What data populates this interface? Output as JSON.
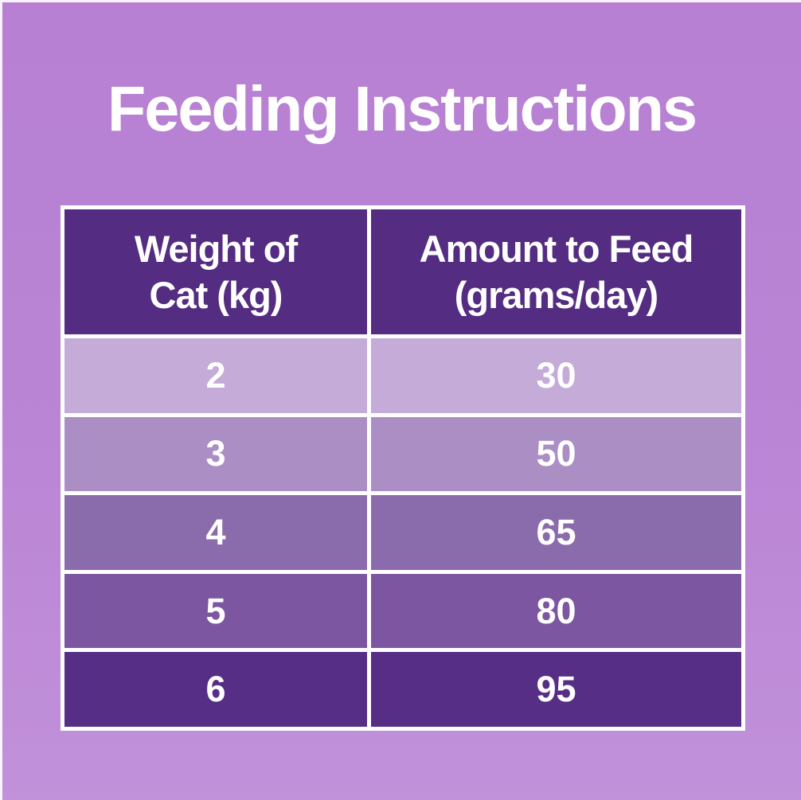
{
  "title": "Feeding Instructions",
  "table": {
    "headers": [
      {
        "line1": "Weight of",
        "line2": "Cat (kg)"
      },
      {
        "line1": "Amount to Feed",
        "line2": "(grams/day)"
      }
    ],
    "rows": [
      {
        "weight": "2",
        "amount": "30",
        "bg": "#c4abd8"
      },
      {
        "weight": "3",
        "amount": "50",
        "bg": "#ab8fc4"
      },
      {
        "weight": "4",
        "amount": "65",
        "bg": "#8a6cac"
      },
      {
        "weight": "5",
        "amount": "80",
        "bg": "#7c56a0"
      },
      {
        "weight": "6",
        "amount": "95",
        "bg": "#572e86"
      }
    ]
  },
  "chart_data": {
    "type": "table",
    "title": "Feeding Instructions",
    "columns": [
      "Weight of Cat (kg)",
      "Amount to Feed (grams/day)"
    ],
    "rows": [
      [
        2,
        30
      ],
      [
        3,
        50
      ],
      [
        4,
        65
      ],
      [
        5,
        80
      ],
      [
        6,
        95
      ]
    ]
  },
  "colors": {
    "header_bg": "#542c82",
    "grid_border": "#ffffff",
    "text": "#ffffff",
    "background_top": "#b780d3",
    "background_bottom": "#c191da"
  }
}
